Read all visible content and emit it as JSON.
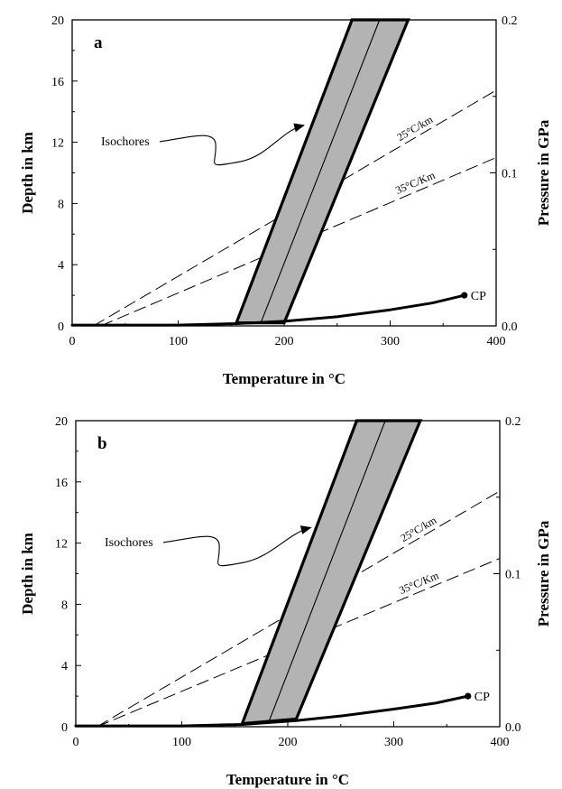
{
  "chart_data": [
    {
      "type": "line",
      "panel_label": "a",
      "xlabel": "Temperature in °C",
      "ylabel": "Depth in km",
      "y2label": "Pressure in GPa",
      "xlim": [
        0,
        400
      ],
      "ylim": [
        0,
        20
      ],
      "y2lim": [
        0.0,
        0.2
      ],
      "xticks": [
        "0",
        "100",
        "200",
        "300",
        "400"
      ],
      "yticks": [
        "0",
        "4",
        "8",
        "12",
        "16",
        "20"
      ],
      "y2ticks": [
        "0.0",
        "0.1",
        "0.2"
      ],
      "grid": false,
      "isochore_band": {
        "left_edge": [
          [
            155,
            0.2
          ],
          [
            264,
            20
          ]
        ],
        "right_edge": [
          [
            200,
            0.2
          ],
          [
            317,
            20
          ]
        ],
        "center_line": [
          [
            178,
            0.2
          ],
          [
            290,
            20
          ]
        ],
        "fill_color": "#b3b3b3"
      },
      "boiling_curve": {
        "x": [
          0,
          100,
          155,
          200,
          250,
          300,
          340,
          370
        ],
        "y": [
          0.05,
          0.05,
          0.15,
          0.3,
          0.6,
          1.05,
          1.5,
          2.0
        ]
      },
      "gradients": [
        {
          "label": "25°C/km",
          "x": [
            20,
            400
          ],
          "y": [
            0,
            15.4
          ]
        },
        {
          "label": "35°C/Km",
          "x": [
            27,
            400
          ],
          "y": [
            0,
            11.0
          ]
        }
      ],
      "annotations": {
        "isochores": "Isochores",
        "critical_point": "CP"
      }
    },
    {
      "type": "line",
      "panel_label": "b",
      "xlabel": "Temperature in °C",
      "ylabel": "Depth in km",
      "y2label": "Pressure in GPa",
      "xlim": [
        0,
        400
      ],
      "ylim": [
        0,
        20
      ],
      "y2lim": [
        0.0,
        0.2
      ],
      "xticks": [
        "0",
        "100",
        "200",
        "300",
        "400"
      ],
      "yticks": [
        "0",
        "4",
        "8",
        "12",
        "16",
        "20"
      ],
      "y2ticks": [
        "0.0",
        "0.1",
        "0.2"
      ],
      "grid": false,
      "isochore_band": {
        "left_edge": [
          [
            157,
            0.2
          ],
          [
            265,
            20
          ]
        ],
        "right_edge": [
          [
            208,
            0.5
          ],
          [
            325,
            20
          ]
        ],
        "center_line": [
          [
            182,
            0.3
          ],
          [
            292,
            20
          ]
        ],
        "fill_color": "#b3b3b3"
      },
      "boiling_curve": {
        "x": [
          0,
          100,
          157,
          208,
          250,
          300,
          340,
          370
        ],
        "y": [
          0.05,
          0.05,
          0.15,
          0.4,
          0.7,
          1.15,
          1.55,
          2.0
        ]
      },
      "gradients": [
        {
          "label": "25°C/km",
          "x": [
            20,
            400
          ],
          "y": [
            0,
            15.4
          ]
        },
        {
          "label": "35°C/Km",
          "x": [
            20,
            400
          ],
          "y": [
            0,
            11.0
          ]
        }
      ],
      "annotations": {
        "isochores": "Isochores",
        "critical_point": "CP"
      }
    }
  ]
}
